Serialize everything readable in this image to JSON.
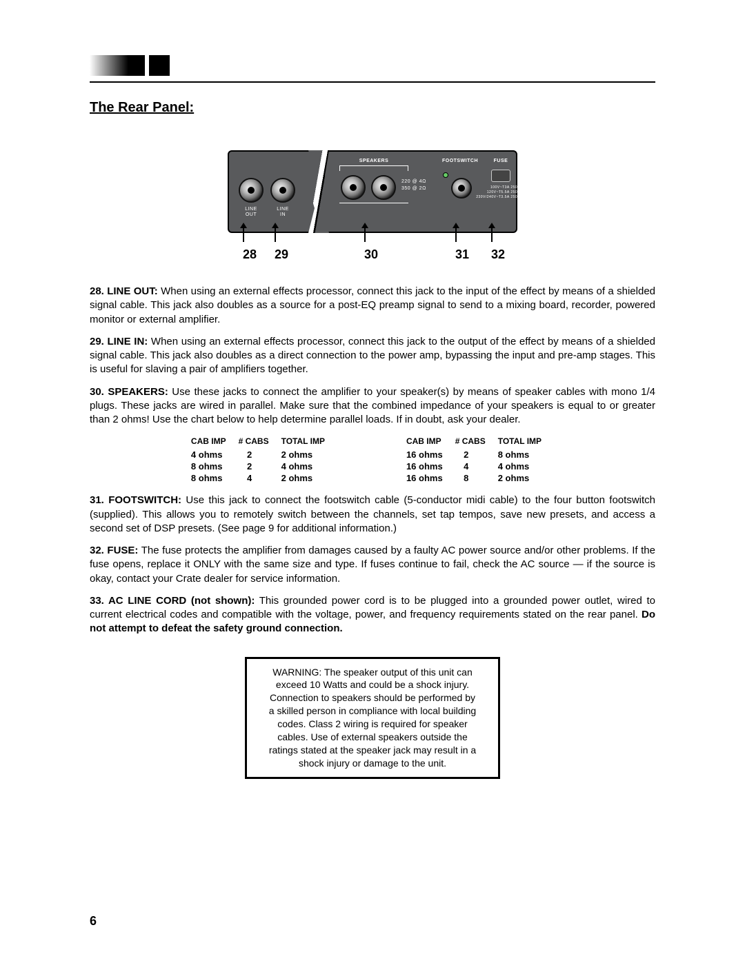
{
  "title": "The Rear Panel:",
  "panel": {
    "labels": {
      "line_out": "LINE\nOUT",
      "line_in": "LINE\nIN",
      "speakers_hdr": "SPEAKERS",
      "spk_power1": "220 @ 4Ω",
      "spk_power2": "350 @ 2Ω",
      "footswitch_hdr": "FOOTSWITCH",
      "fuse_hdr": "FUSE",
      "fuse_ratings1": "100V~T3A 250V",
      "fuse_ratings2": "120V~T5.5A 250V",
      "fuse_ratings3": "230V/240V~T3.5A 250V"
    }
  },
  "callouts": {
    "c28": "28",
    "c29": "29",
    "c30": "30",
    "c31": "31",
    "c32": "32"
  },
  "paras": {
    "p28_lead": "28. LINE OUT:",
    "p28": " When using an external effects processor, connect this jack to the input of the effect by means of a shielded signal cable. This jack also doubles as a source for a post-EQ preamp signal to send to a mixing board, recorder, powered monitor or external amplifier.",
    "p29_lead": "29. LINE IN:",
    "p29": " When using an external effects processor, connect this jack to the output of the effect by means of a shielded signal cable. This jack also doubles as a direct connection to the power amp, bypassing the input and pre-amp stages. This is useful for  slaving  a pair of amplifiers together.",
    "p30_lead": "30. SPEAKERS:",
    "p30": " Use these jacks to connect the amplifier to your speaker(s) by means of speaker cables with mono 1/4  plugs. These jacks are wired in parallel. Make sure that the combined impedance of your speakers is equal to or greater than 2 ohms! Use the chart below to help determine parallel loads. If in doubt, ask your dealer.",
    "p31_lead": "31. FOOTSWITCH:",
    "p31": " Use this jack to connect the footswitch cable (5-conductor midi cable) to the four button footswitch (supplied). This allows you to remotely switch between the channels, set tap tempos, save new presets, and access a second set of DSP presets. (See page 9 for additional information.)",
    "p32_lead": "32. FUSE:",
    "p32": " The fuse protects the amplifier from damages caused by a faulty AC power source and/or other problems. If the fuse opens, replace it ONLY with the same size and type. If fuses continue to fail, check the AC source — if the source is okay, contact your Crate dealer for service information.",
    "p33_lead": "33. AC LINE CORD (not shown):",
    "p33a": " This grounded power cord is to be plugged into a grounded power outlet, wired to current electrical codes and compatible with the voltage, power, and frequency requirements stated on the rear panel. ",
    "p33b": "Do not attempt to defeat the safety ground connection."
  },
  "table_headers": {
    "h1": "CAB IMP",
    "h2": "# CABS",
    "h3": "TOTAL IMP"
  },
  "table_left": [
    {
      "cab": "4 ohms",
      "n": "2",
      "tot": "2 ohms"
    },
    {
      "cab": "8 ohms",
      "n": "2",
      "tot": "4 ohms"
    },
    {
      "cab": "8 ohms",
      "n": "4",
      "tot": "2 ohms"
    }
  ],
  "table_right": [
    {
      "cab": "16 ohms",
      "n": "2",
      "tot": "8 ohms"
    },
    {
      "cab": "16 ohms",
      "n": "4",
      "tot": "4 ohms"
    },
    {
      "cab": "16 ohms",
      "n": "8",
      "tot": "2 ohms"
    }
  ],
  "warning": "WARNING: The speaker output of this unit can exceed 10 Watts and could be a shock injury. Connection to speakers should be performed by a skilled person in compliance with local building codes. Class 2 wiring is required for speaker cables. Use of external speakers outside the ratings stated at the speaker jack may result in a shock injury or damage to the unit.",
  "page_number": "6"
}
